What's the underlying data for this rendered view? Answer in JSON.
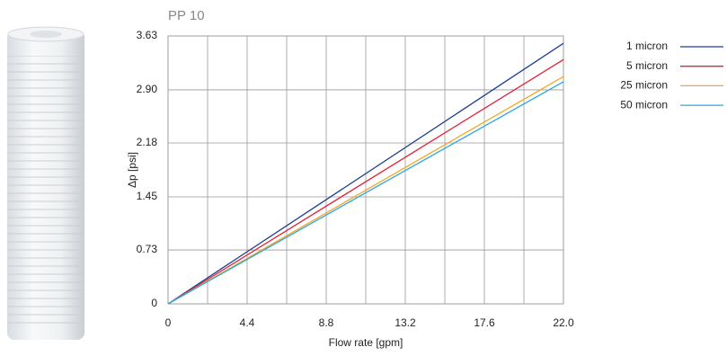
{
  "chart_data": {
    "type": "line",
    "title": "PP 10",
    "x_label": "Flow rate [gpm]",
    "y_label": "Δp [psi]",
    "x": [
      0,
      22
    ],
    "series": [
      {
        "name": "1 micron",
        "color": "#1f3f8f",
        "values": [
          0,
          3.53
        ]
      },
      {
        "name": "5 micron",
        "color": "#e0223a",
        "values": [
          0,
          3.31
        ]
      },
      {
        "name": "25 micron",
        "color": "#f5a623",
        "values": [
          0,
          3.08
        ]
      },
      {
        "name": "50 micron",
        "color": "#29a8e0",
        "values": [
          0,
          3.01
        ]
      }
    ],
    "xlim": [
      0,
      22
    ],
    "xticks": [
      0,
      4.4,
      8.8,
      13.2,
      17.6,
      {
        "value": 22,
        "label": "22.0"
      }
    ],
    "ylim": [
      0,
      3.63
    ],
    "yticks": [
      0,
      0.73,
      1.45,
      2.18,
      {
        "value": 2.9,
        "label": "2.90"
      },
      3.63
    ],
    "grid": true,
    "legend": "right"
  }
}
